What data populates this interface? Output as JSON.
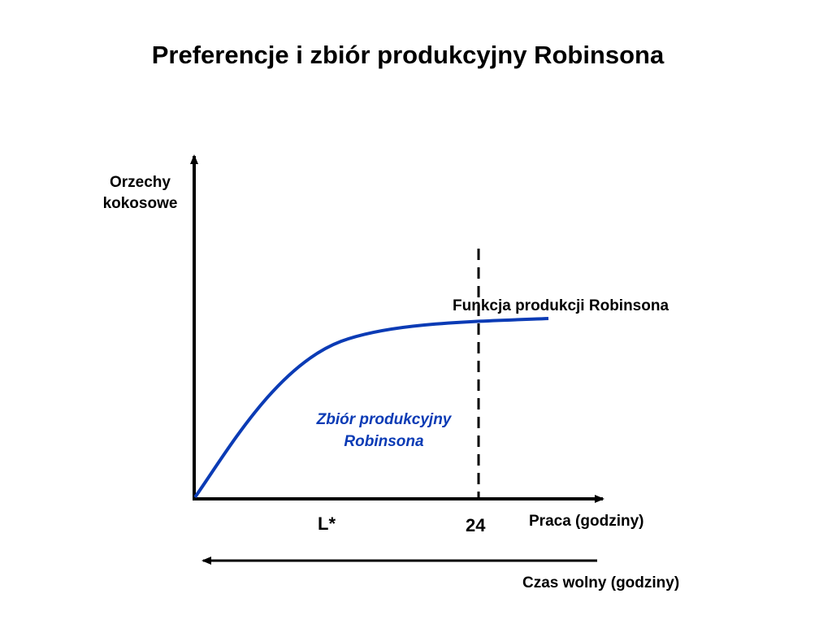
{
  "title": "Preferencje i zbiór produkcyjny Robinsona",
  "y_axis": {
    "line1": "Orzechy",
    "line2": "kokosowe"
  },
  "x_axis": {
    "label": "Praca (godziny)"
  },
  "leisure_axis": {
    "label": "Czas wolny (godziny)"
  },
  "ticks": {
    "l_star": "L*",
    "max_hours": "24"
  },
  "production_function": {
    "label": "Funkcja produkcji Robinsona"
  },
  "production_set": {
    "line1": "Zbiór produkcyjny",
    "line2": "Robinsona"
  },
  "colors": {
    "curve": "#0b3bb5",
    "axes": "#000000",
    "text": "#000000",
    "region_text": "#0b3bb5"
  }
}
